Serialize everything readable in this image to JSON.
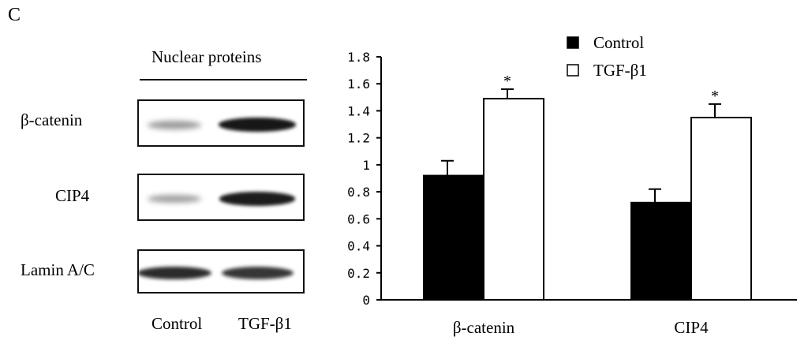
{
  "panel_letter": "C",
  "blot": {
    "title": "Nuclear proteins",
    "rows": [
      {
        "label": "β-catenin",
        "bands": [
          0.3,
          0.95
        ]
      },
      {
        "label": "CIP4",
        "bands": [
          0.28,
          0.92
        ]
      },
      {
        "label": "Lamin A/C",
        "bands": [
          0.85,
          0.8
        ]
      }
    ],
    "lanes": [
      "Control",
      "TGF-β1"
    ]
  },
  "chart_data": {
    "type": "bar",
    "categories": [
      "β-catenin",
      "CIP4"
    ],
    "series": [
      {
        "name": "Control",
        "values": [
          0.92,
          0.72
        ],
        "errors": [
          0.11,
          0.1
        ],
        "color": "#000000"
      },
      {
        "name": "TGF-β1",
        "values": [
          1.49,
          1.35
        ],
        "errors": [
          0.07,
          0.1
        ],
        "color": "#ffffff",
        "significance": [
          "*",
          "*"
        ]
      }
    ],
    "ylim": [
      0,
      1.8
    ],
    "yticks": [
      "0",
      "0.2",
      "0.4",
      "0.6",
      "0.8",
      "1",
      "1.2",
      "1.4",
      "1.6",
      "1.8"
    ],
    "legend_position": "top-right",
    "grid": false,
    "title": "",
    "xlabel": "",
    "ylabel": ""
  }
}
